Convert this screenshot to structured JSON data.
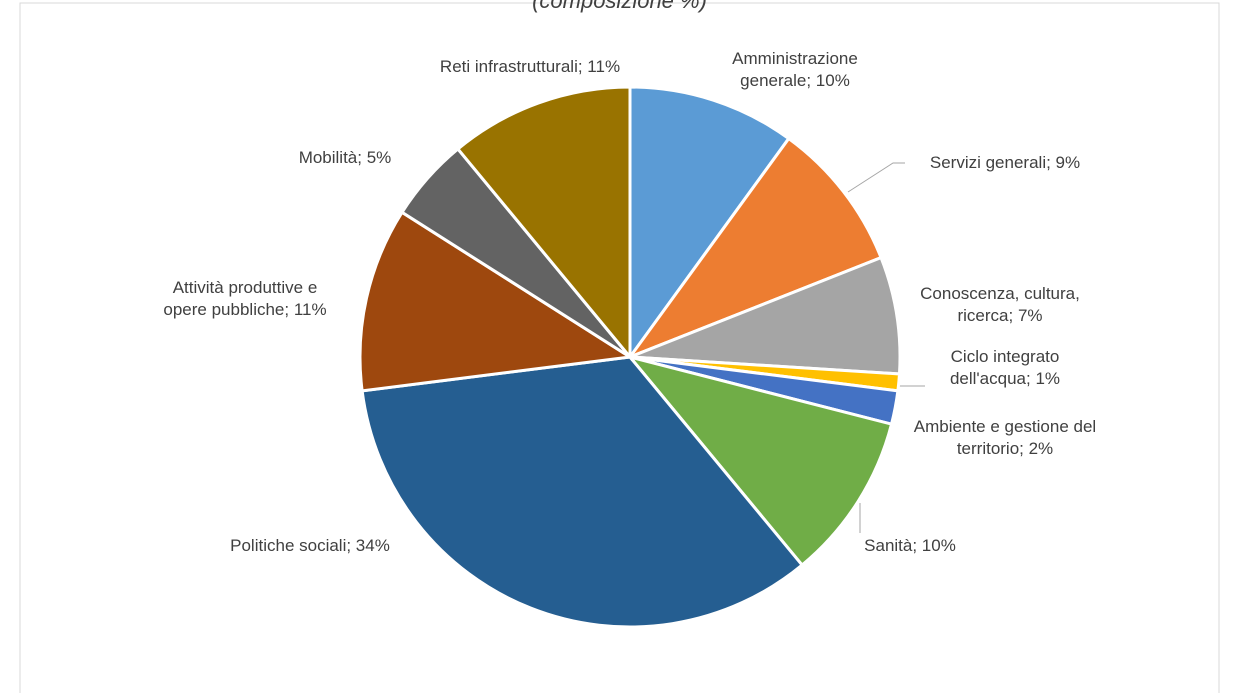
{
  "chart_data": {
    "type": "pie",
    "title": "(composizione %)",
    "values": [
      10,
      9,
      7,
      1,
      2,
      10,
      34,
      11,
      5,
      11
    ],
    "value_labels": [
      "Amministrazione generale; 10%",
      "Servizi generali; 9%",
      "Conoscenza, cultura, ricerca; 7%",
      "Ciclo integrato dell'acqua; 1%",
      "Ambiente e gestione del territorio; 2%",
      "Sanità; 10%",
      "Politiche sociali; 34%",
      "Attività produttive e opere pubbliche; 11%",
      "Mobilità; 5%",
      "Reti infrastrutturali; 11%"
    ],
    "colors": [
      "#5b9bd5",
      "#ed7d31",
      "#a5a5a5",
      "#ffc000",
      "#4472c4",
      "#70ad47",
      "#255e91",
      "#9e480e",
      "#636363",
      "#997300"
    ]
  }
}
